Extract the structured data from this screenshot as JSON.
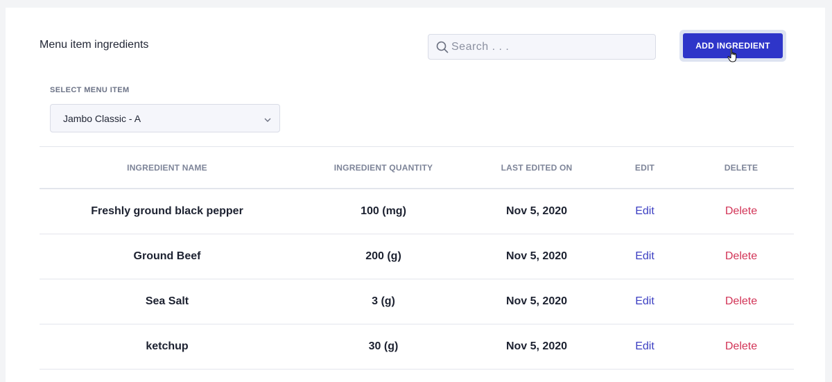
{
  "header": {
    "title": "Menu item ingredients",
    "search_placeholder": "Search . . .",
    "add_button_label": "ADD INGREDIENT"
  },
  "menu_select": {
    "label": "SELECT MENU ITEM",
    "selected": "Jambo Classic - A"
  },
  "table": {
    "columns": [
      "INGREDIENT NAME",
      "INGREDIENT QUANTITY",
      "LAST EDITED ON",
      "EDIT",
      "DELETE"
    ],
    "rows": [
      {
        "name": "Freshly ground black pepper",
        "quantity": "100 (mg)",
        "last_edited": "Nov 5, 2020",
        "edit": "Edit",
        "delete": "Delete"
      },
      {
        "name": "Ground Beef",
        "quantity": "200 (g)",
        "last_edited": "Nov 5, 2020",
        "edit": "Edit",
        "delete": "Delete"
      },
      {
        "name": "Sea Salt",
        "quantity": "3 (g)",
        "last_edited": "Nov 5, 2020",
        "edit": "Edit",
        "delete": "Delete"
      },
      {
        "name": "ketchup",
        "quantity": "30 (g)",
        "last_edited": "Nov 5, 2020",
        "edit": "Edit",
        "delete": "Delete"
      }
    ]
  },
  "icons": {
    "search": "search-icon",
    "select_caret": "chevron-down-icon",
    "cursor": "hand-pointer-icon"
  },
  "colors": {
    "primary_button": "#2e35c9",
    "edit_link": "#3c3fc2",
    "delete_link": "#d23356"
  }
}
